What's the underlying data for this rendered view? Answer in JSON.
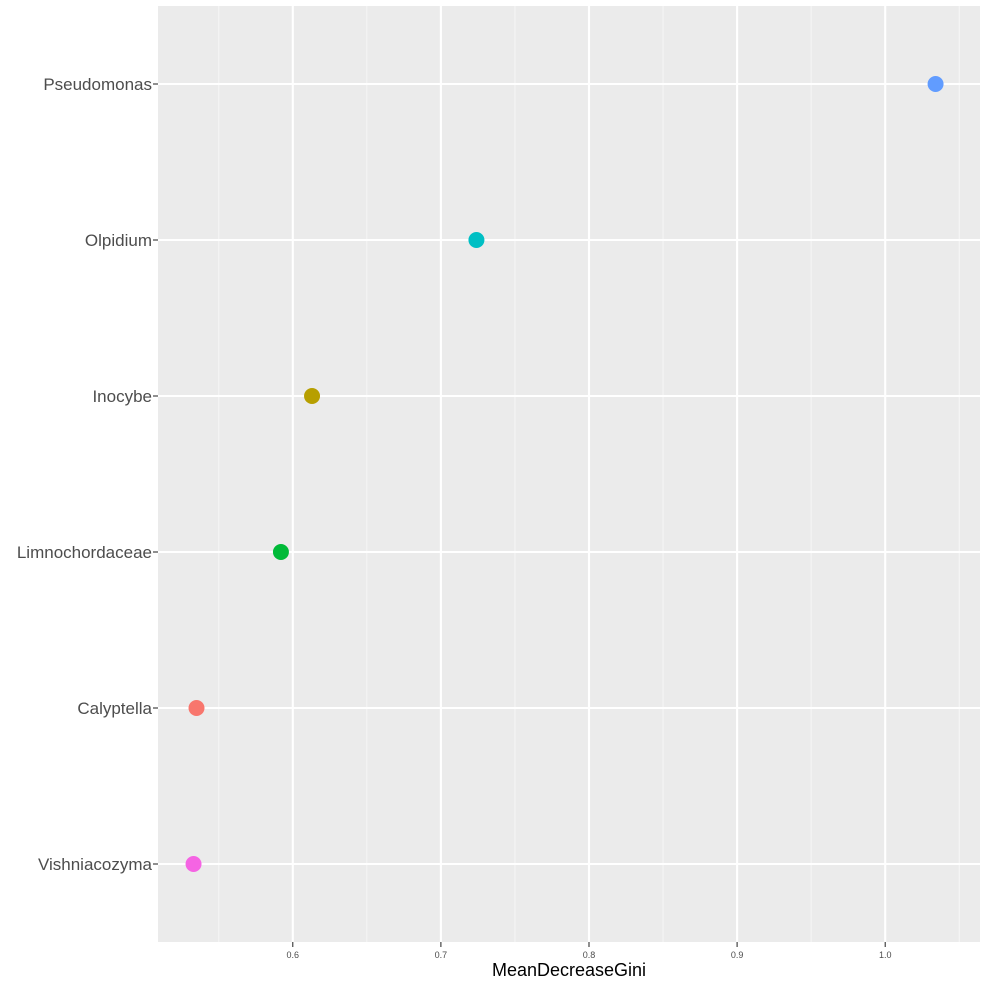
{
  "chart_data": {
    "type": "scatter",
    "title": "",
    "xlabel": "MeanDecreaseGini",
    "ylabel": "",
    "xlim": [
      0.509,
      1.064
    ],
    "x_ticks": [
      0.6,
      0.7,
      0.8,
      0.9,
      1.0
    ],
    "x_tick_labels": [
      "0.6",
      "0.7",
      "0.8",
      "0.9",
      "1.0"
    ],
    "categories": [
      "Pseudomonas",
      "Olpidium",
      "Inocybe",
      "Limnochordaceae",
      "Calyptella",
      "Vishniacozyma"
    ],
    "points": [
      {
        "category": "Pseudomonas",
        "x": 1.034,
        "color": "#619CFF"
      },
      {
        "category": "Olpidium",
        "x": 0.724,
        "color": "#00BFC4"
      },
      {
        "category": "Inocybe",
        "x": 0.613,
        "color": "#B79F00"
      },
      {
        "category": "Limnochordaceae",
        "x": 0.592,
        "color": "#00BA38"
      },
      {
        "category": "Calyptella",
        "x": 0.535,
        "color": "#F8766D"
      },
      {
        "category": "Vishniacozyma",
        "x": 0.533,
        "color": "#F564E3"
      }
    ],
    "grid": true,
    "legend": "none",
    "colors": {
      "panel_background": "#EBEBEB",
      "grid_major": "#FFFFFF",
      "grid_minor": "#F5F5F5",
      "tick_color": "#333333"
    }
  }
}
